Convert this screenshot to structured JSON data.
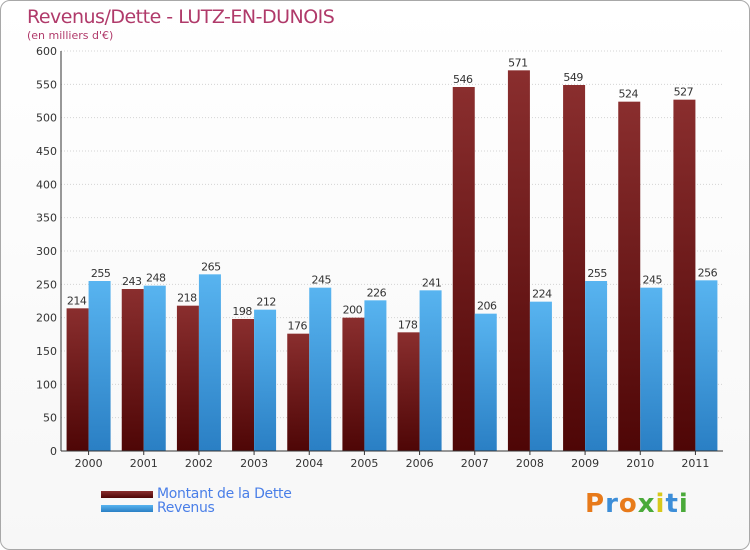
{
  "header": {
    "title": "Revenus/Dette - LUTZ-EN-DUNOIS",
    "subtitle": "(en milliers d'€)"
  },
  "legend": {
    "items": [
      {
        "label": "Montant de la Dette",
        "color": "#7a1a1a"
      },
      {
        "label": "Revenus",
        "color": "#3d9be0"
      }
    ]
  },
  "logo": {
    "text": "Proxiti",
    "letters": [
      "P",
      "r",
      "o",
      "x",
      "i",
      "t",
      "i"
    ],
    "colors": [
      "#e87a1a",
      "#3d8ed8",
      "#e87a1a",
      "#4aaa3a",
      "#d8c81a",
      "#3d8ed8",
      "#4aaa3a"
    ]
  },
  "chart_data": {
    "type": "bar",
    "categories": [
      "2000",
      "2001",
      "2002",
      "2003",
      "2004",
      "2005",
      "2006",
      "2007",
      "2008",
      "2009",
      "2010",
      "2011"
    ],
    "series": [
      {
        "name": "Montant de la Dette",
        "values": [
          214,
          243,
          218,
          198,
          176,
          200,
          178,
          546,
          571,
          549,
          524,
          527
        ],
        "color": "#7a1a1a"
      },
      {
        "name": "Revenus",
        "values": [
          255,
          248,
          265,
          212,
          245,
          226,
          241,
          206,
          224,
          255,
          245,
          256
        ],
        "color": "#3d9be0"
      }
    ],
    "ylim": [
      0,
      600
    ],
    "yticks": [
      0,
      50,
      100,
      150,
      200,
      250,
      300,
      350,
      400,
      450,
      500,
      550,
      600
    ],
    "grid": true,
    "legend_position": "bottom-left"
  }
}
